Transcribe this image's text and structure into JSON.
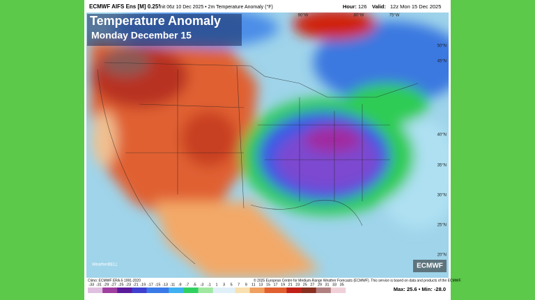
{
  "header": {
    "model": "ECMWF AIFS Ens [M] 0.25°",
    "init": "Init 06z 10 Dec 2025 • 2m Temperature Anomaly (°F)",
    "hour_label": "Hour:",
    "hour": "126",
    "valid_label": "Valid:",
    "valid": "12z Mon 15 Dec 2025"
  },
  "overlay": {
    "title": "Temperature Anomaly",
    "subtitle": "Monday December 15"
  },
  "map": {
    "lat_labels": [
      "50°N",
      "45°N",
      "40°N",
      "35°N",
      "30°N",
      "25°N",
      "20°N"
    ],
    "lon_labels": [
      "90°W",
      "80°W",
      "75°W"
    ]
  },
  "footer": {
    "climo": "Climo: ECMWF ERA-5 1991-2020",
    "copyright": "© 2025 European Centre for Medium-Range Weather Forecasts (ECMWF). This service is based on data and products of the ECMWF.",
    "logo": "ECMWF",
    "brand": "WeatherBELL",
    "stats": "Max: 25.6 • Min: -28.0"
  },
  "colorbar": {
    "labels": [
      -33,
      -31,
      -29,
      -27,
      -25,
      -23,
      -21,
      -19,
      -17,
      -15,
      -13,
      -11,
      -9,
      -7,
      -5,
      -3,
      -1,
      1,
      3,
      5,
      7,
      9,
      11,
      13,
      15,
      17,
      19,
      21,
      23,
      25,
      27,
      29,
      31,
      33,
      35
    ]
  }
}
